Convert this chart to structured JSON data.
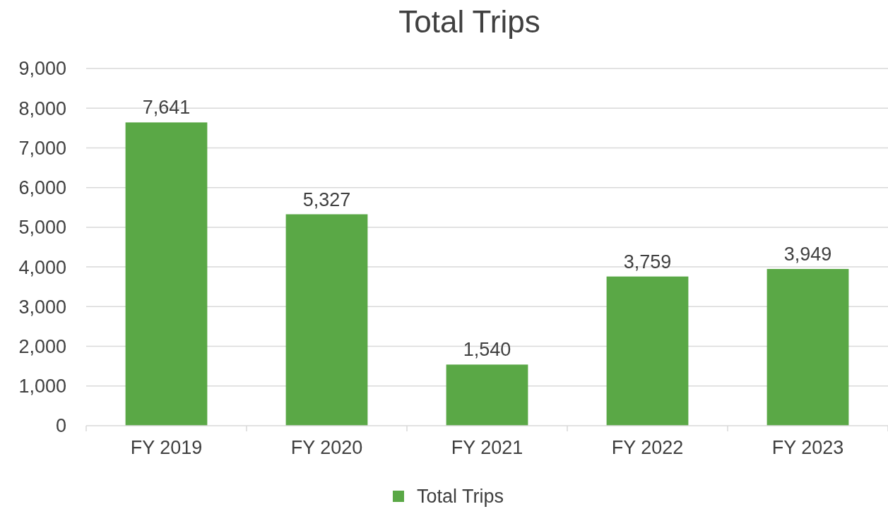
{
  "chart_data": {
    "type": "bar",
    "title": "Total Trips",
    "categories": [
      "FY 2019",
      "FY 2020",
      "FY 2021",
      "FY 2022",
      "FY 2023"
    ],
    "series": [
      {
        "name": "Total Trips",
        "color": "#5aa846",
        "values": [
          7641,
          5327,
          1540,
          3759,
          3949
        ],
        "value_labels": [
          "7,641",
          "5,327",
          "1,540",
          "3,759",
          "3,949"
        ]
      }
    ],
    "ylim": [
      0,
      9000
    ],
    "yticks": [
      {
        "value": 0,
        "label": "0"
      },
      {
        "value": 1000,
        "label": "1,000"
      },
      {
        "value": 2000,
        "label": "2,000"
      },
      {
        "value": 3000,
        "label": "3,000"
      },
      {
        "value": 4000,
        "label": "4,000"
      },
      {
        "value": 5000,
        "label": "5,000"
      },
      {
        "value": 6000,
        "label": "6,000"
      },
      {
        "value": 7000,
        "label": "7,000"
      },
      {
        "value": 8000,
        "label": "8,000"
      },
      {
        "value": 9000,
        "label": "9,000"
      }
    ],
    "grid": "y",
    "legend": "bottom"
  }
}
